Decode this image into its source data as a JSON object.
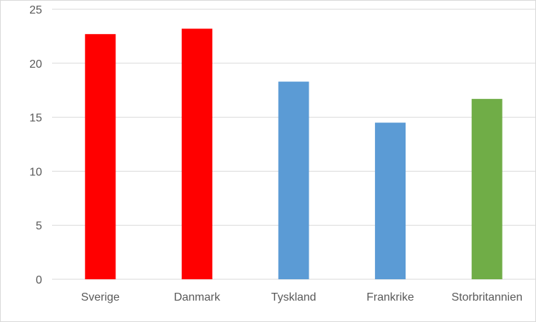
{
  "chart_data": {
    "type": "bar",
    "title": "",
    "xlabel": "",
    "ylabel": "",
    "categories": [
      "Sverige",
      "Danmark",
      "Tyskland",
      "Frankrike",
      "Storbritannien"
    ],
    "values": [
      22.7,
      23.2,
      18.3,
      14.5,
      16.7
    ],
    "colors": [
      "#ff0000",
      "#ff0000",
      "#5b9bd5",
      "#5b9bd5",
      "#70ad47"
    ],
    "ylim": [
      0,
      25
    ],
    "yticks": [
      "0",
      "5",
      "10",
      "15",
      "20",
      "25"
    ],
    "grid": true,
    "legend": "none"
  }
}
